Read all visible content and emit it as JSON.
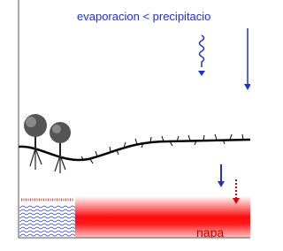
{
  "labels": {
    "top": "evaporacion < precipitacio",
    "water_table": "napa"
  }
}
